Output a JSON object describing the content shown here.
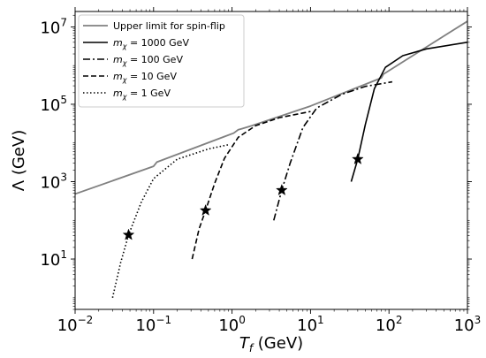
{
  "chart_data": {
    "type": "line",
    "xscale": "log",
    "yscale": "log",
    "xlim": [
      0.01,
      1000
    ],
    "ylim": [
      0.5,
      25000000
    ],
    "xlabel": {
      "symbol": "T",
      "sub": "f",
      "unit": " (GeV)"
    },
    "ylabel": "Λ (GeV)",
    "x_ticks": [
      {
        "value": 0.01,
        "base": "10",
        "exp": "−2"
      },
      {
        "value": 0.1,
        "base": "10",
        "exp": "−1"
      },
      {
        "value": 1,
        "base": "10",
        "exp": "0"
      },
      {
        "value": 10,
        "base": "10",
        "exp": "1"
      },
      {
        "value": 100,
        "base": "10",
        "exp": "2"
      },
      {
        "value": 1000,
        "base": "10",
        "exp": "3"
      }
    ],
    "y_ticks": [
      {
        "value": 10,
        "base": "10",
        "exp": "1"
      },
      {
        "value": 1000,
        "base": "10",
        "exp": "3"
      },
      {
        "value": 100000,
        "base": "10",
        "exp": "5"
      },
      {
        "value": 10000000,
        "base": "10",
        "exp": "7"
      }
    ],
    "grid": false,
    "legend_position": "top-left",
    "series": [
      {
        "name": "Upper limit for spin-flip",
        "legend_label": {
          "text": "Upper limit for spin-flip"
        },
        "color": "#808080",
        "dash": "solid",
        "points": [
          [
            0.01,
            480
          ],
          [
            0.1,
            2500
          ],
          [
            0.11,
            3200
          ],
          [
            1.05,
            18000
          ],
          [
            1.2,
            22000
          ],
          [
            1.35,
            23500
          ],
          [
            1.8,
            28000
          ],
          [
            10,
            90000
          ],
          [
            80,
            480000
          ],
          [
            85,
            600000
          ],
          [
            1000,
            14000000
          ]
        ]
      },
      {
        "name": "m_χ = 1000 GeV",
        "legend_label": {
          "pre": "m",
          "sub": "χ",
          "post": " = 1000 GeV"
        },
        "color": "#000000",
        "dash": "solid",
        "star": [
          40,
          3800
        ],
        "points": [
          [
            33,
            1000
          ],
          [
            40,
            3800
          ],
          [
            50,
            30000
          ],
          [
            65,
            250000
          ],
          [
            90,
            900000
          ],
          [
            150,
            1800000
          ],
          [
            300,
            2700000
          ],
          [
            1000,
            4000000
          ]
        ]
      },
      {
        "name": "m_χ = 100 GeV",
        "legend_label": {
          "pre": "m",
          "sub": "χ",
          "post": " = 100 GeV"
        },
        "color": "#000000",
        "dash": "dashdot",
        "star": [
          4.3,
          600
        ],
        "points": [
          [
            3.4,
            100
          ],
          [
            4.3,
            600
          ],
          [
            5.5,
            3000
          ],
          [
            8,
            25000
          ],
          [
            12,
            80000
          ],
          [
            25,
            180000
          ],
          [
            50,
            290000
          ],
          [
            110,
            380000
          ]
        ]
      },
      {
        "name": "m_χ = 10 GeV",
        "legend_label": {
          "pre": "m",
          "sub": "χ",
          "post": " = 10 GeV"
        },
        "color": "#000000",
        "dash": "dashed",
        "star": [
          0.46,
          180
        ],
        "points": [
          [
            0.31,
            10
          ],
          [
            0.38,
            60
          ],
          [
            0.46,
            180
          ],
          [
            0.6,
            900
          ],
          [
            0.8,
            4000
          ],
          [
            1.2,
            14000
          ],
          [
            2,
            28000
          ],
          [
            4,
            45000
          ],
          [
            10,
            65000
          ]
        ]
      },
      {
        "name": "m_χ = 1 GeV",
        "legend_label": {
          "pre": "m",
          "sub": "χ",
          "post": " = 1 GeV"
        },
        "color": "#000000",
        "dash": "dotted",
        "star": [
          0.048,
          42
        ],
        "points": [
          [
            0.03,
            1
          ],
          [
            0.038,
            8
          ],
          [
            0.048,
            42
          ],
          [
            0.07,
            300
          ],
          [
            0.1,
            1200
          ],
          [
            0.2,
            3800
          ],
          [
            0.5,
            7000
          ],
          [
            0.9,
            9000
          ]
        ]
      }
    ]
  }
}
